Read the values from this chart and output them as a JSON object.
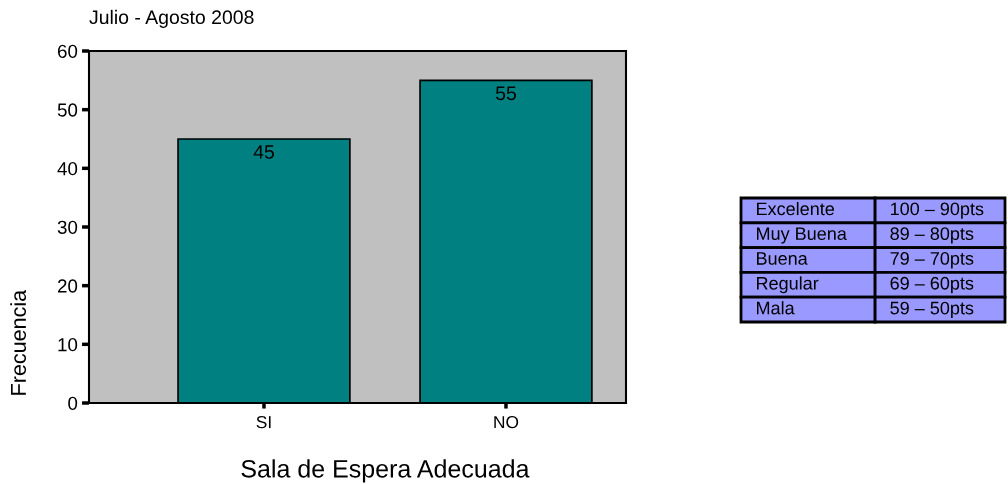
{
  "chart_data": [
    {
      "type": "bar",
      "title": "Julio - Agosto 2008",
      "xlabel": "Sala de Espera Adecuada",
      "ylabel": "Frecuencia",
      "categories": [
        "SI",
        "NO"
      ],
      "values": [
        45,
        55
      ],
      "color": "#008080",
      "ylim": [
        0,
        60
      ],
      "yticks": [
        0,
        10,
        20,
        30,
        40,
        50,
        60
      ],
      "data_labels": true
    },
    {
      "type": "other",
      "annotations": [
        "Excelente",
        "100 – 90pts",
        "Muy Buena",
        "89 – 80pts",
        "Buena",
        "79 – 70pts",
        "Regular",
        "69 – 60pts",
        "Mala",
        "59 – 50pts"
      ]
    }
  ]
}
